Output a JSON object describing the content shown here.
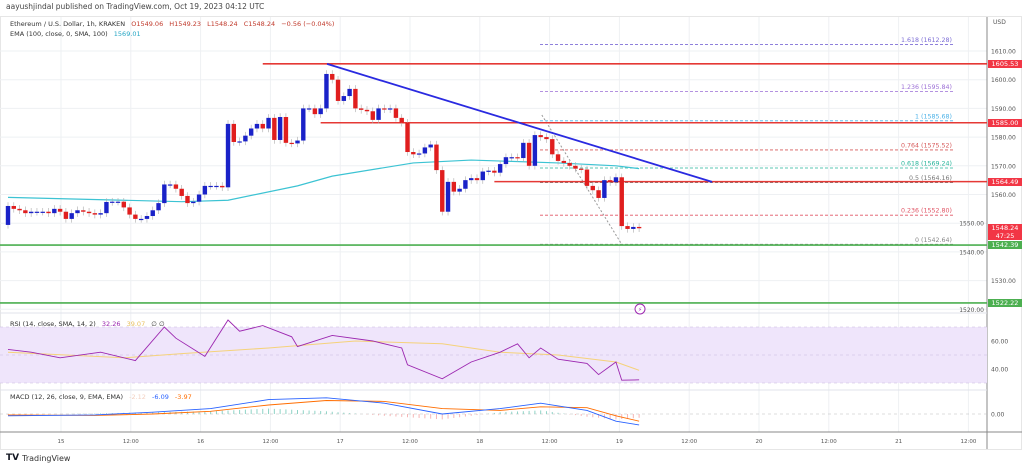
{
  "header": {
    "published": "aayushjindal published on TradingView.com, Oct 19, 2023 04:12 UTC"
  },
  "legend": {
    "symbol": "Ethereum / U.S. Dollar, 1h, KRAKEN",
    "open": "O1549.06",
    "high": "H1549.23",
    "low": "L1548.24",
    "close": "C1548.24",
    "change": "−0.56 (−0.04%)",
    "ema_label": "EMA (100, close, 0, SMA, 100)",
    "ema_value": "1569.01"
  },
  "rsi": {
    "label": "RSI (14, close, SMA, 14, 2)",
    "value": "32.26",
    "ma_value": "39.07",
    "extra": "∅ ∅",
    "axis": [
      "60.00",
      "40.00"
    ]
  },
  "macd": {
    "label": "MACD (12, 26, close, 9, EMA, EMA)",
    "hist": "-2.12",
    "macd": "-6.09",
    "signal": "-3.97",
    "axis": [
      "0.00"
    ]
  },
  "price_axis": {
    "currency": "USD",
    "labels": [
      "1610.00",
      "1600.00",
      "1590.00",
      "1580.00",
      "1570.00",
      "1560.00",
      "1550.00",
      "1540.00",
      "1530.00",
      "1520.00"
    ]
  },
  "time_axis": {
    "labels": [
      "15",
      "12:00",
      "16",
      "12:00",
      "17",
      "12:00",
      "18",
      "12:00",
      "19",
      "12:00",
      "20",
      "12:00",
      "21",
      "12:00"
    ]
  },
  "price_tags": [
    {
      "text": "1605.53",
      "color": "#f23645",
      "price": 1605.53
    },
    {
      "text": "1585.00",
      "color": "#f23645",
      "price": 1585.0
    },
    {
      "text": "1564.49",
      "color": "#f23645",
      "price": 1564.49
    },
    {
      "text": "1548.24",
      "sub": "47:25",
      "color": "#f23645",
      "price": 1548.24
    },
    {
      "text": "1542.39",
      "color": "#4caf50",
      "price": 1542.39
    },
    {
      "text": "1522.22",
      "color": "#4caf50",
      "price": 1522.22
    }
  ],
  "fib_levels": [
    {
      "label": "1.618 (1612.28)",
      "price": 1612.28,
      "color": "#7e6fd6"
    },
    {
      "label": "1.236 (1595.84)",
      "price": 1595.84,
      "color": "#9c6fd6"
    },
    {
      "label": "1 (1585.68)",
      "price": 1585.68,
      "color": "#4fb3e8"
    },
    {
      "label": "0.764 (1575.52)",
      "price": 1575.52,
      "color": "#d65a5a"
    },
    {
      "label": "0.618 (1569.24)",
      "price": 1569.24,
      "color": "#26b59a"
    },
    {
      "label": "0.5 (1564.16)",
      "price": 1564.16,
      "color": "#777777"
    },
    {
      "label": "0.236 (1552.80)",
      "price": 1552.8,
      "color": "#e05565"
    },
    {
      "label": "0 (1542.64)",
      "price": 1542.64,
      "color": "#888888"
    }
  ],
  "footer": {
    "brand": "TradingView"
  },
  "colors": {
    "up": "#1a22c8",
    "down": "#e01e1e",
    "ema": "#3cc3d3",
    "trendline": "#2a2ae0",
    "support": "#4caf50",
    "resistance": "#e53935",
    "rsi": "#9c27b0",
    "rsi_ma": "#f5d27a",
    "macd": "#2962ff",
    "signal": "#ff6d00"
  },
  "chart_data": {
    "type": "candlestick",
    "interval": "1h",
    "first_open": 1549.4,
    "closes": [
      1556.0,
      1555,
      1554.5,
      1553.5,
      1554,
      1554,
      1554,
      1553.5,
      1555,
      1554,
      1551.5,
      1553.5,
      1554.5,
      1554,
      1553.5,
      1553,
      1553.5,
      1557.4,
      1557.5,
      1557.5,
      1555.5,
      1553,
      1551.5,
      1551.5,
      1552.5,
      1554.5,
      1557,
      1563.5,
      1563.5,
      1562,
      1559.5,
      1557,
      1557.5,
      1560,
      1563,
      1563,
      1563,
      1562.5,
      1584.6,
      1578.3,
      1578.5,
      1580.5,
      1583,
      1584.6,
      1583,
      1586.7,
      1579,
      1587,
      1578,
      1577.8,
      1578.8,
      1590,
      1590,
      1588,
      1590,
      1602,
      1600,
      1592.6,
      1594.3,
      1596.8,
      1590,
      1589.5,
      1589,
      1586,
      1590,
      1589.7,
      1590,
      1586.7,
      1585,
      1574.8,
      1574,
      1574.3,
      1576.4,
      1577.4,
      1568.5,
      1554,
      1564.4,
      1561,
      1562,
      1565,
      1565.7,
      1565,
      1568,
      1568.3,
      1567.6,
      1570.6,
      1573,
      1573,
      1572.7,
      1578,
      1570,
      1580.7,
      1580,
      1579.3,
      1574,
      1571.7,
      1571,
      1570,
      1569,
      1568.7,
      1563,
      1561.5,
      1558.8,
      1565,
      1564.3,
      1566,
      1549,
      1548,
      1548.7,
      1548.24
    ],
    "ema100": [
      [
        0,
        1559
      ],
      [
        30,
        1557.5
      ],
      [
        38,
        1558
      ],
      [
        50,
        1563
      ],
      [
        56,
        1566.4
      ],
      [
        70,
        1571
      ],
      [
        80,
        1572
      ],
      [
        95,
        1571
      ],
      [
        105,
        1570
      ],
      [
        109,
        1569.01
      ]
    ],
    "horizontal_lines": [
      {
        "price": 1605.53,
        "color": "#e53935",
        "from_index": 44
      },
      {
        "price": 1585.0,
        "color": "#e53935",
        "from_index": 54
      },
      {
        "price": 1564.49,
        "color": "#e53935",
        "from_index": 84
      },
      {
        "price": 1542.39,
        "color": "#4caf50",
        "from_index": -2
      },
      {
        "price": 1522.22,
        "color": "#4caf50",
        "from_index": -2
      }
    ],
    "trendline": [
      [
        55.1,
        1605.5
      ],
      [
        121.6,
        1564.4
      ]
    ],
    "fib_anchor": [
      [
        92.2,
        1587.7
      ],
      [
        106,
        1542.64
      ]
    ],
    "rsi": [
      [
        0,
        54
      ],
      [
        4,
        52
      ],
      [
        9,
        48
      ],
      [
        16,
        52
      ],
      [
        22,
        46
      ],
      [
        27,
        70
      ],
      [
        29,
        62
      ],
      [
        34,
        49
      ],
      [
        38,
        75
      ],
      [
        40,
        67
      ],
      [
        44,
        71
      ],
      [
        49,
        63
      ],
      [
        50,
        56
      ],
      [
        56,
        64
      ],
      [
        63,
        60
      ],
      [
        68,
        55
      ],
      [
        69,
        43
      ],
      [
        75,
        33
      ],
      [
        80,
        45
      ],
      [
        85,
        52
      ],
      [
        88,
        58
      ],
      [
        90,
        48
      ],
      [
        92,
        55
      ],
      [
        95,
        47
      ],
      [
        100,
        44
      ],
      [
        102,
        36
      ],
      [
        105,
        45
      ],
      [
        106,
        32
      ],
      [
        109,
        32.26
      ]
    ],
    "rsi_ma": [
      [
        0,
        52
      ],
      [
        20,
        48
      ],
      [
        30,
        51
      ],
      [
        45,
        55
      ],
      [
        60,
        60
      ],
      [
        75,
        58
      ],
      [
        85,
        52
      ],
      [
        95,
        50
      ],
      [
        105,
        45
      ],
      [
        109,
        39.07
      ]
    ],
    "rsi_band": [
      30,
      70
    ],
    "macd_line": [
      [
        0,
        -1
      ],
      [
        15,
        -0.5
      ],
      [
        25,
        1
      ],
      [
        35,
        3
      ],
      [
        45,
        8
      ],
      [
        55,
        9
      ],
      [
        65,
        6
      ],
      [
        75,
        0
      ],
      [
        85,
        3
      ],
      [
        92,
        6
      ],
      [
        100,
        2
      ],
      [
        105,
        -4
      ],
      [
        109,
        -6.09
      ]
    ],
    "signal_line": [
      [
        0,
        -0.5
      ],
      [
        15,
        -0.8
      ],
      [
        25,
        0
      ],
      [
        35,
        1.5
      ],
      [
        45,
        5
      ],
      [
        55,
        7.5
      ],
      [
        65,
        7
      ],
      [
        75,
        3
      ],
      [
        85,
        2
      ],
      [
        92,
        4
      ],
      [
        100,
        3.5
      ],
      [
        105,
        -1
      ],
      [
        109,
        -3.97
      ]
    ]
  }
}
